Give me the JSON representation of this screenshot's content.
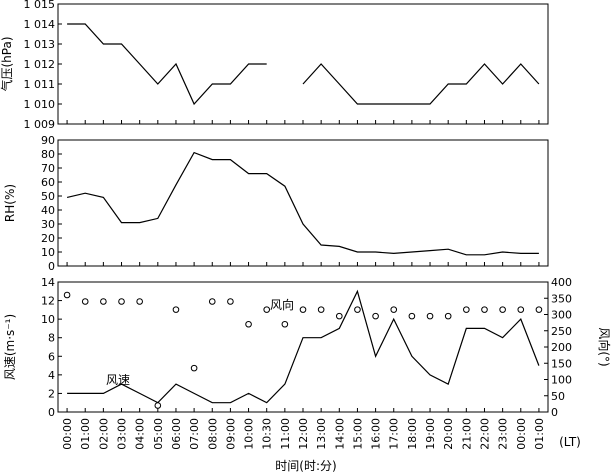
{
  "chart_data": [
    {
      "type": "line",
      "id": "pressure",
      "ylabel": "气压(hPa)",
      "ylim": [
        1009,
        1015
      ],
      "yticks": [
        "1 009",
        "1 010",
        "1 011",
        "1 012",
        "1 013",
        "1 014",
        "1 015"
      ],
      "series": [
        {
          "segments": [
            [
              [
                0,
                1014
              ],
              [
                1,
                1014
              ],
              [
                2,
                1013
              ],
              [
                3,
                1013
              ],
              [
                4,
                1012
              ],
              [
                5,
                1011
              ],
              [
                6,
                1012
              ],
              [
                7,
                1010
              ],
              [
                8,
                1011
              ],
              [
                9,
                1011
              ],
              [
                10,
                1012
              ],
              [
                11,
                1012
              ]
            ],
            [
              [
                13,
                1011
              ],
              [
                14,
                1012
              ],
              [
                15,
                1011
              ],
              [
                16,
                1010
              ],
              [
                17,
                1010
              ],
              [
                18,
                1010
              ],
              [
                19,
                1010
              ],
              [
                20,
                1010
              ],
              [
                21,
                1011
              ],
              [
                22,
                1011
              ],
              [
                23,
                1012
              ],
              [
                24,
                1011
              ],
              [
                25,
                1012
              ],
              [
                26,
                1011
              ]
            ]
          ]
        }
      ]
    },
    {
      "type": "line",
      "id": "humidity",
      "ylabel": "RH(%)",
      "ylim": [
        0,
        90
      ],
      "yticks": [
        "0",
        "10",
        "20",
        "30",
        "40",
        "50",
        "60",
        "70",
        "80",
        "90"
      ],
      "series": [
        {
          "values": [
            49,
            52,
            49,
            31,
            31,
            34,
            58,
            81,
            76,
            76,
            66,
            66,
            57,
            30,
            15,
            14,
            10,
            10,
            9,
            10,
            11,
            12,
            8,
            8,
            10,
            9,
            9
          ]
        }
      ]
    },
    {
      "type": "line",
      "id": "wind",
      "ylabel": "风速(m·s⁻¹)",
      "y2label": "风向(°)",
      "ylim": [
        0,
        14
      ],
      "y2lim": [
        0,
        400
      ],
      "yticks": [
        "0",
        "2",
        "4",
        "6",
        "8",
        "10",
        "12",
        "14"
      ],
      "y2ticks": [
        "0",
        "50",
        "100",
        "150",
        "200",
        "250",
        "300",
        "350",
        "400"
      ],
      "annotations": {
        "speed": "风速",
        "direction": "风向"
      },
      "series": [
        {
          "values": [
            2,
            2,
            2,
            3,
            2,
            1,
            3,
            2,
            1,
            1,
            2,
            1,
            3,
            8,
            8,
            9,
            13,
            6,
            10,
            6,
            4,
            3,
            9,
            9,
            8,
            10,
            5
          ]
        }
      ],
      "direction_points": [
        [
          0,
          360
        ],
        [
          1,
          340
        ],
        [
          2,
          340
        ],
        [
          3,
          340
        ],
        [
          4,
          340
        ],
        [
          5,
          20
        ],
        [
          6,
          315
        ],
        [
          7,
          135
        ],
        [
          8,
          340
        ],
        [
          9,
          340
        ],
        [
          10,
          270
        ],
        [
          11,
          315
        ],
        [
          12,
          270
        ],
        [
          13,
          315
        ],
        [
          14,
          315
        ],
        [
          15,
          295
        ],
        [
          16,
          315
        ],
        [
          17,
          295
        ],
        [
          18,
          315
        ],
        [
          19,
          295
        ],
        [
          20,
          295
        ],
        [
          21,
          295
        ],
        [
          22,
          315
        ],
        [
          23,
          315
        ],
        [
          24,
          315
        ],
        [
          25,
          315
        ],
        [
          26,
          315
        ]
      ]
    }
  ],
  "x_axis": {
    "ticks": [
      "00:00",
      "01:00",
      "02:00",
      "03:00",
      "04:00",
      "05:00",
      "06:00",
      "07:00",
      "08:00",
      "09:00",
      "10:00",
      "10:30",
      "11:00",
      "12:00",
      "13:00",
      "14:00",
      "15:00",
      "16:00",
      "17:00",
      "18:00",
      "19:00",
      "20:00",
      "21:00",
      "22:00",
      "23:00",
      "00:00",
      "01:00"
    ],
    "unit": "(LT)",
    "title": "时间(时:分)"
  }
}
